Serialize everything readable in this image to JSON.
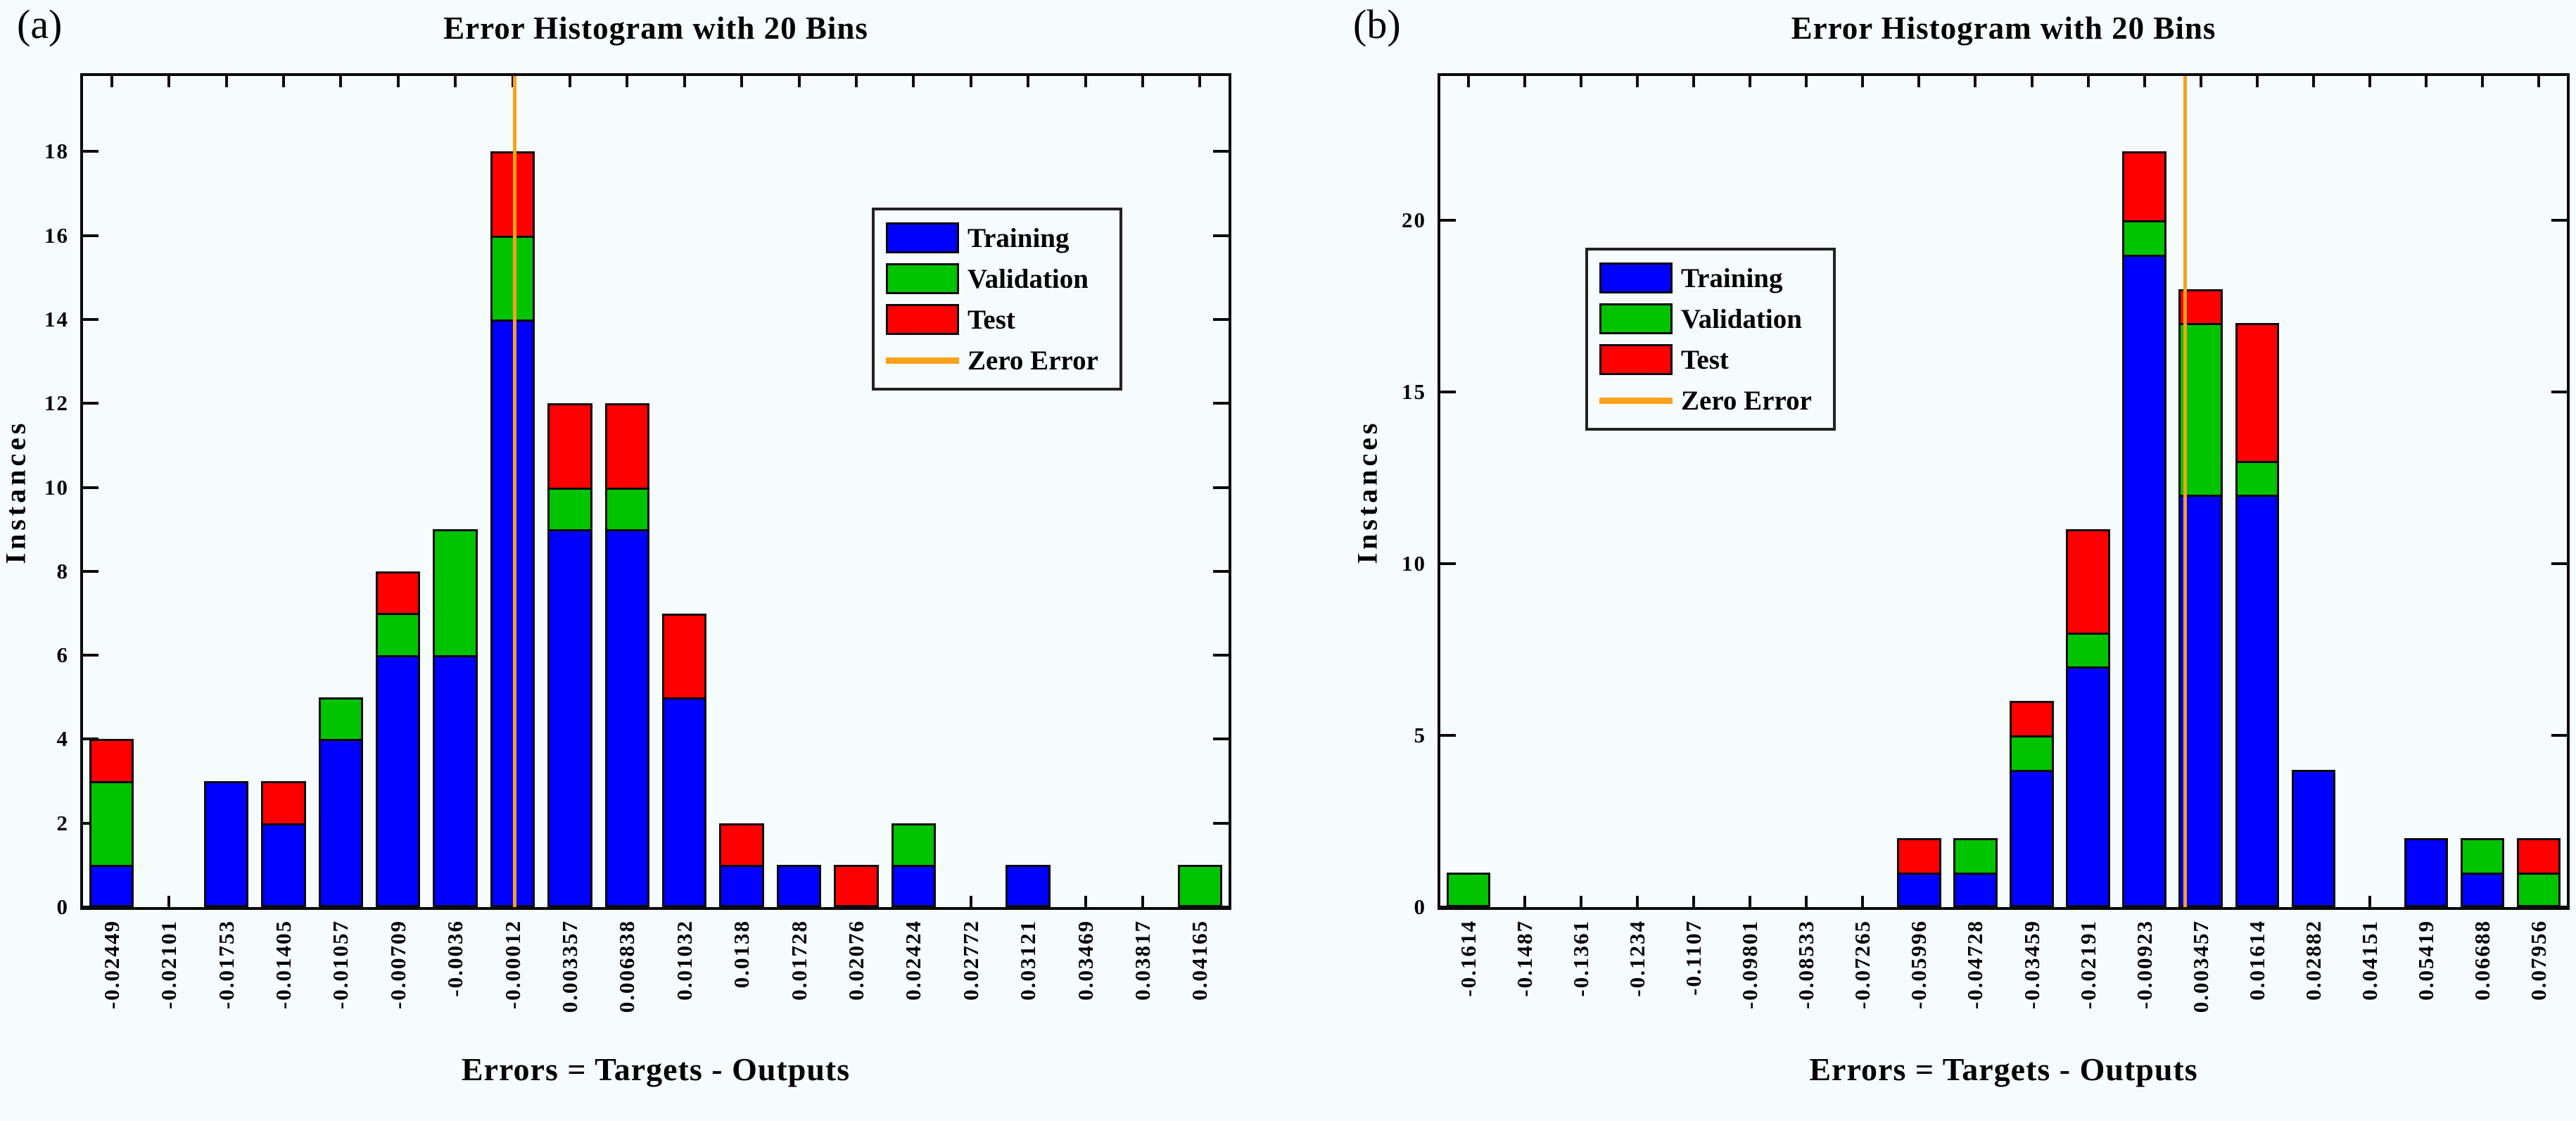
{
  "figure": {
    "background": "#f6fcfc",
    "axis_color": "#0a0a0a",
    "text_color": "#000000"
  },
  "chart_data": [
    {
      "type": "bar",
      "stacked": true,
      "panel_label": "(a)",
      "title": "Error Histogram with 20 Bins",
      "xlabel": "Errors = Targets - Outputs",
      "ylabel": "Instances",
      "categories": [
        "-0.02449",
        "-0.02101",
        "-0.01753",
        "-0.01405",
        "-0.01057",
        "-0.00709",
        "-0.0036",
        "-0.00012",
        "0.003357",
        "0.006838",
        "0.01032",
        "0.0138",
        "0.01728",
        "0.02076",
        "0.02424",
        "0.02772",
        "0.03121",
        "0.03469",
        "0.03817",
        "0.04165"
      ],
      "series": [
        {
          "name": "Training",
          "color": "#0000ff",
          "values": [
            1,
            0,
            3,
            2,
            4,
            6,
            6,
            14,
            9,
            9,
            5,
            1,
            1,
            0,
            1,
            0,
            1,
            0,
            0,
            0
          ]
        },
        {
          "name": "Validation",
          "color": "#00c400",
          "values": [
            2,
            0,
            0,
            0,
            1,
            1,
            3,
            2,
            1,
            1,
            0,
            0,
            0,
            0,
            1,
            0,
            0,
            0,
            0,
            1
          ]
        },
        {
          "name": "Test",
          "color": "#ff0000",
          "values": [
            1,
            0,
            0,
            1,
            0,
            1,
            0,
            2,
            2,
            2,
            2,
            1,
            0,
            1,
            0,
            0,
            0,
            0,
            0,
            0
          ]
        }
      ],
      "zero_line": {
        "label": "Zero Error",
        "color": "#f9a11b",
        "x": 0
      },
      "ylim": [
        0,
        19.8
      ],
      "yticks": [
        0,
        2,
        4,
        6,
        8,
        10,
        12,
        14,
        16,
        18
      ],
      "grid": false,
      "legend_position": "inside-upper-right"
    },
    {
      "type": "bar",
      "stacked": true,
      "panel_label": "(b)",
      "title": "Error Histogram with 20 Bins",
      "xlabel": "Errors = Targets - Outputs",
      "ylabel": "Instances",
      "categories": [
        "-0.1614",
        "-0.1487",
        "-0.1361",
        "-0.1234",
        "-0.1107",
        "-0.09801",
        "-0.08533",
        "-0.07265",
        "-0.05996",
        "-0.04728",
        "-0.03459",
        "-0.02191",
        "-0.00923",
        "0.003457",
        "0.01614",
        "0.02882",
        "0.04151",
        "0.05419",
        "0.06688",
        "0.07956"
      ],
      "series": [
        {
          "name": "Training",
          "color": "#0000ff",
          "values": [
            0,
            0,
            0,
            0,
            0,
            0,
            0,
            0,
            1,
            1,
            4,
            7,
            19,
            12,
            12,
            4,
            0,
            2,
            1,
            0
          ]
        },
        {
          "name": "Validation",
          "color": "#00c400",
          "values": [
            1,
            0,
            0,
            0,
            0,
            0,
            0,
            0,
            0,
            1,
            1,
            1,
            1,
            5,
            1,
            0,
            0,
            0,
            1,
            1
          ]
        },
        {
          "name": "Test",
          "color": "#ff0000",
          "values": [
            0,
            0,
            0,
            0,
            0,
            0,
            0,
            0,
            1,
            0,
            1,
            3,
            2,
            1,
            4,
            0,
            0,
            0,
            0,
            1
          ]
        }
      ],
      "zero_line": {
        "label": "Zero Error",
        "color": "#f9a11b",
        "x": 0
      },
      "ylim": [
        0,
        24.2
      ],
      "yticks": [
        0,
        5,
        10,
        15,
        20
      ],
      "grid": false,
      "legend_position": "inside-upper-left"
    }
  ]
}
